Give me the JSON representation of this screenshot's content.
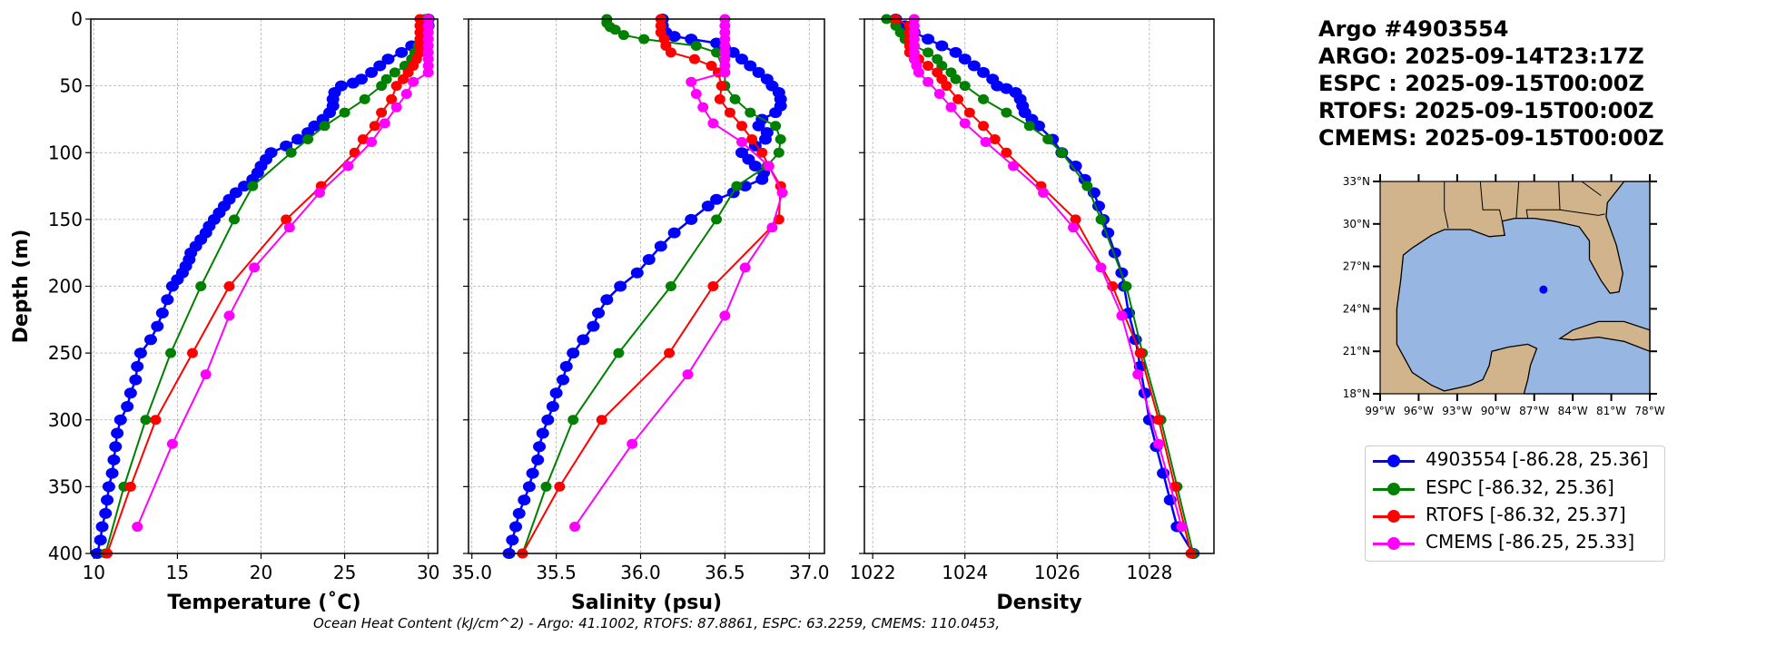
{
  "header": {
    "lines": [
      "Argo #4903554",
      "ARGO: 2025-09-14T23:17Z",
      "ESPC : 2025-09-15T00:00Z",
      "RTOFS: 2025-09-15T00:00Z",
      "CMEMS: 2025-09-15T00:00Z"
    ]
  },
  "footer": {
    "text": "Ocean Heat Content (kJ/cm^2) - Argo: 41.1002,  RTOFS: 87.8861,  ESPC: 63.2259,  CMEMS: 110.0453,"
  },
  "legend": {
    "items": [
      {
        "label": "4903554 [-86.28, 25.36]",
        "color": "#0000ff"
      },
      {
        "label": "ESPC [-86.32, 25.36]",
        "color": "#008000"
      },
      {
        "label": "RTOFS [-86.32, 25.37]",
        "color": "#ff0000"
      },
      {
        "label": "CMEMS [-86.25, 25.33]",
        "color": "#ff00ff"
      }
    ]
  },
  "map": {
    "lat_ticks": [
      "18°N",
      "21°N",
      "24°N",
      "27°N",
      "30°N",
      "33°N"
    ],
    "lon_ticks": [
      "99°W",
      "96°W",
      "93°W",
      "90°W",
      "87°W",
      "84°W",
      "81°W",
      "78°W"
    ],
    "float_position": {
      "lon": -86.28,
      "lat": 25.36
    },
    "colors": {
      "land": "#d2b48c",
      "ocean": "#97b6e1",
      "float": "#0000ff"
    }
  },
  "chart_data": [
    {
      "type": "line",
      "xlabel": "Temperature (˚C)",
      "ylabel": "Depth (m)",
      "xlim": [
        9.82,
        30.56
      ],
      "ylim": [
        400,
        0
      ],
      "xticks": [
        "10",
        "15",
        "20",
        "25",
        "30"
      ],
      "xtick_values": [
        10,
        15,
        20,
        25,
        30
      ],
      "yticks": [
        "0",
        "50",
        "100",
        "150",
        "200",
        "250",
        "300",
        "350",
        "400"
      ],
      "ytick_values": [
        0,
        50,
        100,
        150,
        200,
        250,
        300,
        350,
        400
      ],
      "grid": true,
      "series": [
        {
          "name": "4903554",
          "color": "#0000ff",
          "depth": [
            0,
            5,
            10,
            15,
            20,
            25,
            30,
            35,
            40,
            45,
            48,
            50,
            55,
            60,
            65,
            70,
            75,
            80,
            85,
            90,
            95,
            100,
            105,
            110,
            115,
            120,
            125,
            130,
            135,
            140,
            145,
            150,
            155,
            160,
            165,
            170,
            175,
            180,
            185,
            190,
            195,
            200,
            210,
            220,
            230,
            240,
            250,
            260,
            270,
            280,
            290,
            300,
            310,
            320,
            330,
            340,
            350,
            360,
            370,
            380,
            390,
            400
          ],
          "values": [
            30.0,
            30.0,
            29.9,
            29.6,
            29.0,
            28.4,
            27.6,
            27.1,
            26.6,
            26.0,
            25.5,
            24.8,
            24.4,
            24.3,
            24.3,
            24.1,
            23.7,
            23.2,
            22.8,
            22.2,
            21.5,
            20.6,
            20.3,
            20.0,
            19.8,
            19.5,
            19.0,
            18.5,
            18.1,
            17.8,
            17.5,
            17.2,
            16.9,
            16.7,
            16.4,
            16.1,
            15.8,
            15.7,
            15.5,
            15.3,
            15.0,
            14.7,
            14.4,
            14.1,
            13.8,
            13.4,
            12.8,
            12.6,
            12.5,
            12.2,
            12.0,
            11.6,
            11.4,
            11.3,
            11.2,
            11.1,
            10.9,
            10.8,
            10.7,
            10.5,
            10.4,
            10.2
          ]
        },
        {
          "name": "ESPC",
          "color": "#008000",
          "depth": [
            0,
            5,
            10,
            15,
            20,
            25,
            30,
            35,
            40,
            45,
            50,
            60,
            70,
            80,
            90,
            100,
            125,
            150,
            200,
            250,
            300,
            350,
            400
          ],
          "values": [
            29.8,
            29.7,
            29.6,
            29.5,
            29.4,
            29.2,
            29.0,
            28.6,
            28.0,
            27.5,
            27.2,
            26.2,
            25.0,
            23.8,
            22.8,
            21.8,
            19.5,
            18.4,
            16.4,
            14.6,
            13.1,
            11.8,
            10.7
          ]
        },
        {
          "name": "RTOFS",
          "color": "#ff0000",
          "depth": [
            0,
            5,
            10,
            15,
            20,
            25,
            30,
            35,
            40,
            45,
            50,
            60,
            70,
            80,
            90,
            100,
            125,
            150,
            200,
            250,
            300,
            350,
            400
          ],
          "values": [
            29.5,
            29.5,
            29.5,
            29.5,
            29.5,
            29.5,
            29.3,
            29.1,
            28.8,
            28.5,
            28.1,
            27.8,
            27.2,
            26.8,
            26.1,
            25.6,
            23.6,
            21.5,
            18.1,
            15.9,
            13.7,
            12.2,
            10.8
          ]
        },
        {
          "name": "CMEMS",
          "color": "#ff00ff",
          "depth": [
            0,
            5,
            10,
            15,
            20,
            25,
            30,
            35,
            40,
            47,
            56,
            66,
            78,
            92,
            110,
            130,
            156,
            186,
            222,
            266,
            318,
            380
          ],
          "values": [
            30.0,
            30.0,
            30.0,
            30.0,
            30.0,
            30.0,
            30.0,
            30.0,
            30.0,
            29.1,
            28.7,
            28.1,
            27.4,
            26.6,
            25.2,
            23.5,
            21.7,
            19.6,
            18.1,
            16.7,
            14.7,
            12.6
          ]
        }
      ]
    },
    {
      "type": "line",
      "xlabel": "Salinity (psu)",
      "xlim": [
        34.98,
        37.09
      ],
      "ylim": [
        400,
        0
      ],
      "xticks": [
        "35.0",
        "35.5",
        "36.0",
        "36.5",
        "37.0"
      ],
      "xtick_values": [
        35.0,
        35.5,
        36.0,
        36.5,
        37.0
      ],
      "ytick_values": [
        0,
        50,
        100,
        150,
        200,
        250,
        300,
        350,
        400
      ],
      "grid": true,
      "series": [
        {
          "name": "4903554",
          "color": "#0000ff",
          "depth": [
            0,
            5,
            10,
            13,
            15,
            18,
            22,
            25,
            30,
            35,
            40,
            45,
            50,
            55,
            60,
            65,
            70,
            75,
            80,
            85,
            90,
            95,
            100,
            105,
            110,
            115,
            120,
            125,
            130,
            135,
            140,
            150,
            160,
            170,
            180,
            190,
            200,
            210,
            220,
            230,
            240,
            250,
            260,
            270,
            280,
            290,
            300,
            310,
            320,
            330,
            340,
            350,
            360,
            370,
            380,
            390,
            400
          ],
          "values": [
            36.13,
            36.13,
            36.15,
            36.2,
            36.3,
            36.45,
            36.5,
            36.55,
            36.6,
            36.65,
            36.7,
            36.75,
            36.78,
            36.82,
            36.83,
            36.83,
            36.8,
            36.72,
            36.7,
            36.75,
            36.74,
            36.68,
            36.6,
            36.64,
            36.68,
            36.73,
            36.72,
            36.62,
            36.55,
            36.45,
            36.4,
            36.3,
            36.2,
            36.12,
            36.05,
            35.98,
            35.88,
            35.8,
            35.75,
            35.72,
            35.66,
            35.6,
            35.56,
            35.54,
            35.5,
            35.48,
            35.45,
            35.42,
            35.4,
            35.39,
            35.36,
            35.34,
            35.31,
            35.28,
            35.26,
            35.24,
            35.22
          ]
        },
        {
          "name": "ESPC",
          "color": "#008000",
          "depth": [
            0,
            3,
            6,
            8,
            12,
            15,
            20,
            25,
            40,
            50,
            60,
            70,
            80,
            90,
            100,
            110,
            125,
            150,
            200,
            250,
            300,
            350,
            400
          ],
          "values": [
            35.8,
            35.8,
            35.82,
            35.85,
            35.9,
            36.02,
            36.33,
            36.45,
            36.5,
            36.5,
            36.56,
            36.65,
            36.8,
            36.83,
            36.82,
            36.75,
            36.57,
            36.45,
            36.18,
            35.87,
            35.6,
            35.44,
            35.3
          ]
        },
        {
          "name": "RTOFS",
          "color": "#ff0000",
          "depth": [
            0,
            5,
            10,
            15,
            20,
            25,
            30,
            35,
            40,
            50,
            60,
            70,
            80,
            90,
            100,
            110,
            125,
            150,
            200,
            250,
            300,
            350,
            400
          ],
          "values": [
            36.12,
            36.12,
            36.12,
            36.14,
            36.15,
            36.18,
            36.32,
            36.42,
            36.46,
            36.48,
            36.47,
            36.53,
            36.6,
            36.66,
            36.72,
            36.76,
            36.83,
            36.82,
            36.43,
            36.17,
            35.77,
            35.52,
            35.3
          ]
        },
        {
          "name": "CMEMS",
          "color": "#ff00ff",
          "depth": [
            0,
            5,
            10,
            15,
            20,
            25,
            30,
            35,
            40,
            47,
            56,
            66,
            78,
            92,
            110,
            130,
            156,
            186,
            222,
            266,
            318,
            380
          ],
          "values": [
            36.5,
            36.5,
            36.5,
            36.5,
            36.5,
            36.5,
            36.5,
            36.5,
            36.5,
            36.3,
            36.33,
            36.37,
            36.43,
            36.6,
            36.76,
            36.84,
            36.78,
            36.62,
            36.5,
            36.28,
            35.95,
            35.61
          ]
        }
      ]
    },
    {
      "type": "line",
      "xlabel": "Density",
      "xlim": [
        1021.82,
        1029.4
      ],
      "ylim": [
        400,
        0
      ],
      "xticks": [
        "1022",
        "1024",
        "1026",
        "1028"
      ],
      "xtick_values": [
        1022,
        1024,
        1026,
        1028
      ],
      "ytick_values": [
        0,
        50,
        100,
        150,
        200,
        250,
        300,
        350,
        400
      ],
      "grid": true,
      "series": [
        {
          "name": "4903554",
          "color": "#0000ff",
          "depth": [
            0,
            5,
            10,
            15,
            20,
            25,
            30,
            35,
            40,
            45,
            50,
            52,
            55,
            60,
            65,
            70,
            75,
            80,
            90,
            100,
            110,
            120,
            130,
            140,
            150,
            160,
            175,
            190,
            200,
            220,
            240,
            260,
            280,
            300,
            320,
            340,
            360,
            380,
            400
          ],
          "values": [
            1022.5,
            1022.7,
            1022.9,
            1023.2,
            1023.5,
            1023.8,
            1024.0,
            1024.2,
            1024.4,
            1024.6,
            1024.7,
            1024.9,
            1025.1,
            1025.2,
            1025.25,
            1025.3,
            1025.45,
            1025.6,
            1025.9,
            1026.1,
            1026.4,
            1026.6,
            1026.8,
            1026.9,
            1027.0,
            1027.1,
            1027.25,
            1027.4,
            1027.45,
            1027.55,
            1027.7,
            1027.8,
            1027.9,
            1028.0,
            1028.15,
            1028.3,
            1028.45,
            1028.6,
            1028.95
          ]
        },
        {
          "name": "ESPC",
          "color": "#008000",
          "depth": [
            0,
            5,
            10,
            15,
            20,
            25,
            30,
            35,
            40,
            45,
            50,
            60,
            70,
            80,
            90,
            100,
            125,
            150,
            200,
            250,
            300,
            350,
            400
          ],
          "values": [
            1022.3,
            1022.5,
            1022.6,
            1022.7,
            1022.9,
            1023.2,
            1023.4,
            1023.5,
            1023.7,
            1023.8,
            1024.0,
            1024.4,
            1024.9,
            1025.4,
            1025.8,
            1026.1,
            1026.65,
            1026.95,
            1027.5,
            1027.85,
            1028.25,
            1028.6,
            1028.95
          ]
        },
        {
          "name": "RTOFS",
          "color": "#ff0000",
          "depth": [
            0,
            5,
            10,
            15,
            20,
            25,
            30,
            35,
            40,
            45,
            50,
            60,
            70,
            80,
            90,
            100,
            125,
            150,
            200,
            250,
            300,
            350,
            400
          ],
          "values": [
            1022.5,
            1022.8,
            1022.8,
            1022.8,
            1022.8,
            1022.8,
            1023.0,
            1023.2,
            1023.4,
            1023.5,
            1023.6,
            1023.85,
            1024.1,
            1024.4,
            1024.65,
            1024.9,
            1025.65,
            1026.4,
            1027.2,
            1027.8,
            1028.2,
            1028.55,
            1028.9
          ]
        },
        {
          "name": "CMEMS",
          "color": "#ff00ff",
          "depth": [
            0,
            5,
            10,
            15,
            20,
            25,
            30,
            35,
            40,
            47,
            56,
            66,
            78,
            92,
            110,
            130,
            156,
            186,
            222,
            266,
            318,
            380
          ],
          "values": [
            1022.9,
            1022.9,
            1022.9,
            1022.9,
            1022.9,
            1022.9,
            1022.9,
            1022.95,
            1023.0,
            1023.2,
            1023.45,
            1023.7,
            1024.0,
            1024.45,
            1025.05,
            1025.7,
            1026.35,
            1026.95,
            1027.4,
            1027.75,
            1028.2,
            1028.7
          ]
        }
      ]
    }
  ]
}
